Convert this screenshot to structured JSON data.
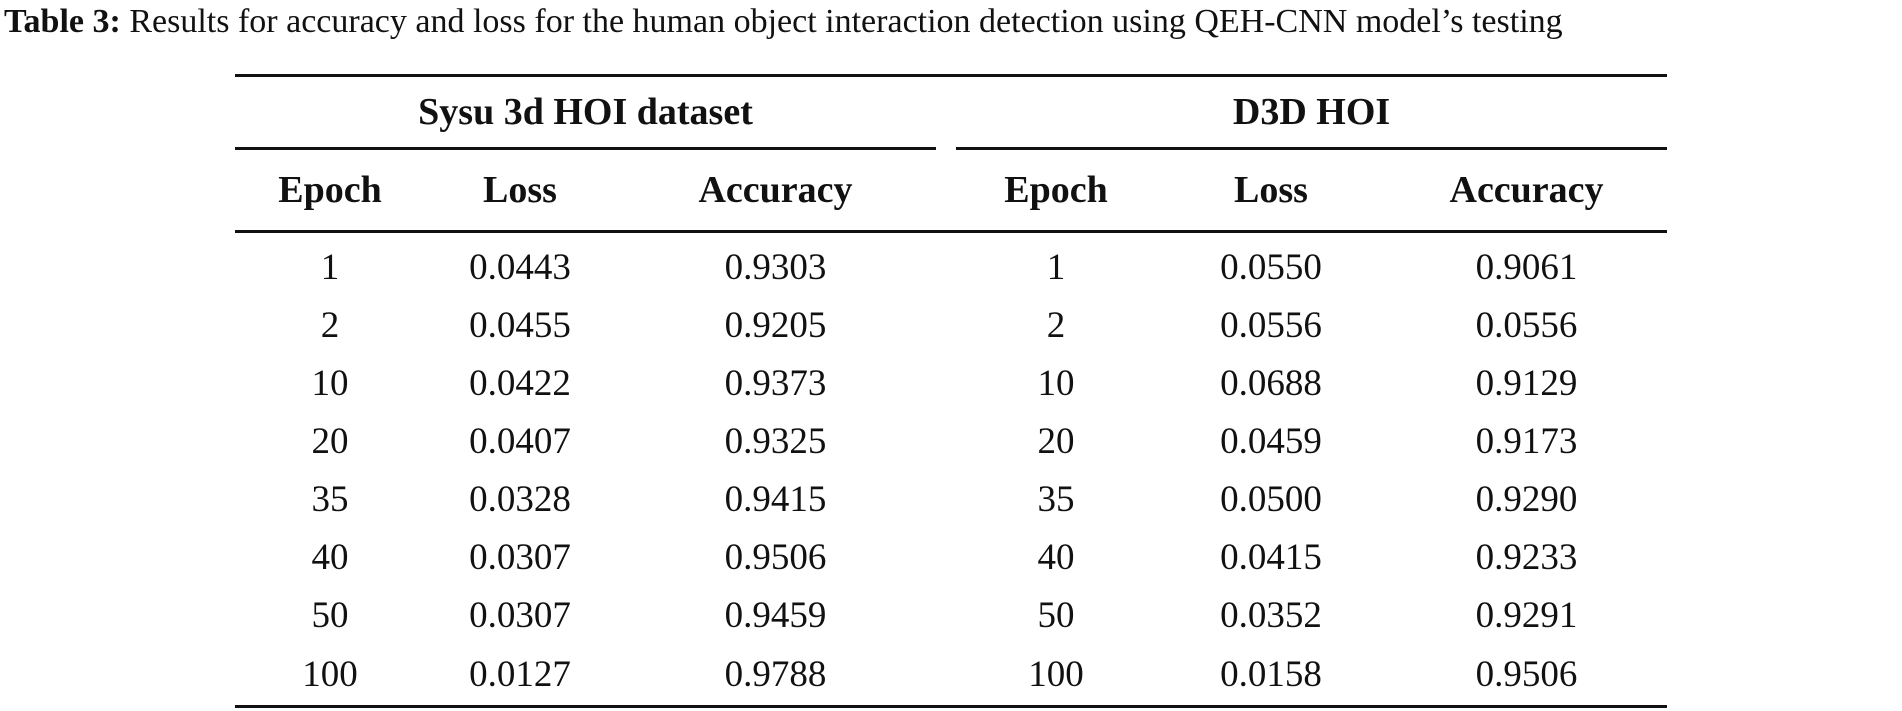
{
  "caption": {
    "label": "Table 3:",
    "text": "Results for accuracy and loss for the human object interaction detection using QEH-CNN model’s testing"
  },
  "table": {
    "group_left": "Sysu 3d HOI dataset",
    "group_right": "D3D HOI",
    "columns": [
      "Epoch",
      "Loss",
      "Accuracy",
      "Epoch",
      "Loss",
      "Accuracy"
    ],
    "rows": [
      [
        "1",
        "0.0443",
        "0.9303",
        "1",
        "0.0550",
        "0.9061"
      ],
      [
        "2",
        "0.0455",
        "0.9205",
        "2",
        "0.0556",
        "0.0556"
      ],
      [
        "10",
        "0.0422",
        "0.9373",
        "10",
        "0.0688",
        "0.9129"
      ],
      [
        "20",
        "0.0407",
        "0.9325",
        "20",
        "0.0459",
        "0.9173"
      ],
      [
        "35",
        "0.0328",
        "0.9415",
        "35",
        "0.0500",
        "0.9290"
      ],
      [
        "40",
        "0.0307",
        "0.9506",
        "40",
        "0.0415",
        "0.9233"
      ],
      [
        "50",
        "0.0307",
        "0.9459",
        "50",
        "0.0352",
        "0.9291"
      ],
      [
        "100",
        "0.0127",
        "0.9788",
        "100",
        "0.0158",
        "0.9506"
      ]
    ]
  }
}
